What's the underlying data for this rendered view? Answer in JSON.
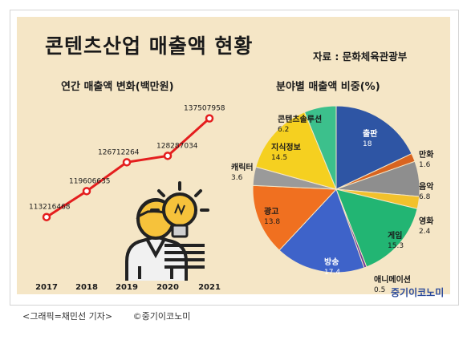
{
  "title": "콘텐츠산업 매출액 현황",
  "source": "자료 : 문화체육관광부",
  "caption": {
    "credit": "<그래픽=채민선 기자>",
    "copyright": "©중기이코노미"
  },
  "brand": "중기이코노미",
  "colors": {
    "background": "#f5e6c6",
    "line": "#e41e1e"
  },
  "icons": [
    "person-icon",
    "lightbulb-icon"
  ],
  "chart_data": [
    {
      "type": "line",
      "title": "연간 매출액 변화(백만원)",
      "categories": [
        "2017",
        "2018",
        "2019",
        "2020",
        "2021"
      ],
      "values": [
        113216468,
        119606635,
        126712264,
        128287034,
        137507958
      ],
      "value_labels": [
        "113216468",
        "119606635",
        "126712264",
        "128287034",
        "137507958"
      ],
      "grid": false
    },
    {
      "type": "pie",
      "title": "분야별 매출액 비중(%)",
      "slices": [
        {
          "label": "출판",
          "value": 18,
          "display": "18",
          "color": "#2e55a4"
        },
        {
          "label": "만화",
          "value": 1.6,
          "display": "1.6",
          "color": "#d86420"
        },
        {
          "label": "음악",
          "value": 6.8,
          "display": "6.8",
          "color": "#8e8e8e"
        },
        {
          "label": "영화",
          "value": 2.4,
          "display": "2.4",
          "color": "#f2c12c"
        },
        {
          "label": "게임",
          "value": 15.3,
          "display": "15.3",
          "color": "#22b573"
        },
        {
          "label": "애니메이션",
          "value": 0.5,
          "display": "0.5",
          "color": "#6f3d9a"
        },
        {
          "label": "방송",
          "value": 17.4,
          "display": "17.4",
          "color": "#3e63c9"
        },
        {
          "label": "광고",
          "value": 13.8,
          "display": "13.8",
          "color": "#f07020"
        },
        {
          "label": "캐릭터",
          "value": 3.6,
          "display": "3.6",
          "color": "#9a9a9a"
        },
        {
          "label": "지식정보",
          "value": 14.5,
          "display": "14.5",
          "color": "#f5d020"
        },
        {
          "label": "콘텐츠솔루션",
          "value": 6.2,
          "display": "6.2",
          "color": "#3cc08c"
        }
      ]
    }
  ]
}
